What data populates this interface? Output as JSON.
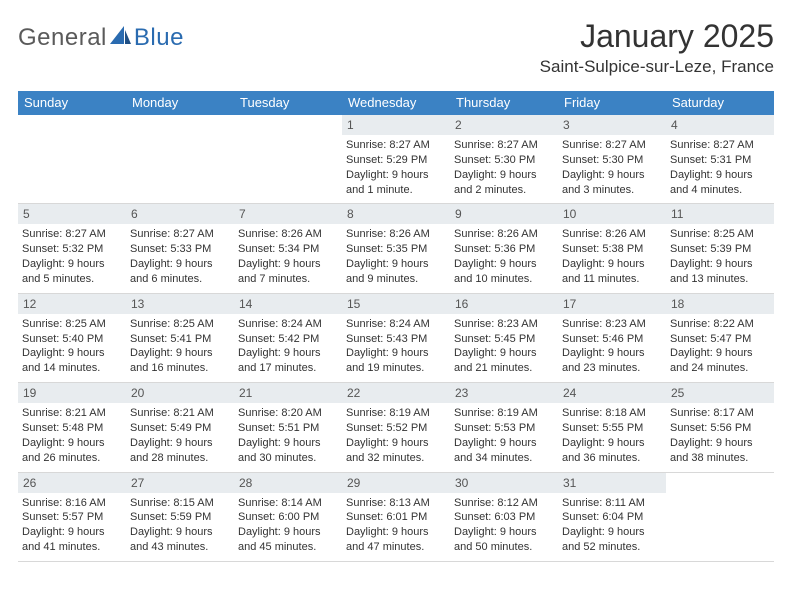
{
  "brand": {
    "part1": "General",
    "part2": "Blue"
  },
  "title": "January 2025",
  "location": "Saint-Sulpice-sur-Leze, France",
  "colors": {
    "header_bg": "#3b82c4",
    "header_text": "#ffffff",
    "daynum_bg": "#e8ecef",
    "daynum_text": "#555555",
    "body_text": "#333333",
    "logo_gray": "#5a5a5a",
    "logo_blue": "#2a6bb0",
    "divider": "#d8d8d8",
    "background": "#ffffff"
  },
  "day_names": [
    "Sunday",
    "Monday",
    "Tuesday",
    "Wednesday",
    "Thursday",
    "Friday",
    "Saturday"
  ],
  "weeks": [
    [
      {
        "day": "",
        "sunrise": "",
        "sunset": "",
        "daylight": ""
      },
      {
        "day": "",
        "sunrise": "",
        "sunset": "",
        "daylight": ""
      },
      {
        "day": "",
        "sunrise": "",
        "sunset": "",
        "daylight": ""
      },
      {
        "day": "1",
        "sunrise": "Sunrise: 8:27 AM",
        "sunset": "Sunset: 5:29 PM",
        "daylight": "Daylight: 9 hours and 1 minute."
      },
      {
        "day": "2",
        "sunrise": "Sunrise: 8:27 AM",
        "sunset": "Sunset: 5:30 PM",
        "daylight": "Daylight: 9 hours and 2 minutes."
      },
      {
        "day": "3",
        "sunrise": "Sunrise: 8:27 AM",
        "sunset": "Sunset: 5:30 PM",
        "daylight": "Daylight: 9 hours and 3 minutes."
      },
      {
        "day": "4",
        "sunrise": "Sunrise: 8:27 AM",
        "sunset": "Sunset: 5:31 PM",
        "daylight": "Daylight: 9 hours and 4 minutes."
      }
    ],
    [
      {
        "day": "5",
        "sunrise": "Sunrise: 8:27 AM",
        "sunset": "Sunset: 5:32 PM",
        "daylight": "Daylight: 9 hours and 5 minutes."
      },
      {
        "day": "6",
        "sunrise": "Sunrise: 8:27 AM",
        "sunset": "Sunset: 5:33 PM",
        "daylight": "Daylight: 9 hours and 6 minutes."
      },
      {
        "day": "7",
        "sunrise": "Sunrise: 8:26 AM",
        "sunset": "Sunset: 5:34 PM",
        "daylight": "Daylight: 9 hours and 7 minutes."
      },
      {
        "day": "8",
        "sunrise": "Sunrise: 8:26 AM",
        "sunset": "Sunset: 5:35 PM",
        "daylight": "Daylight: 9 hours and 9 minutes."
      },
      {
        "day": "9",
        "sunrise": "Sunrise: 8:26 AM",
        "sunset": "Sunset: 5:36 PM",
        "daylight": "Daylight: 9 hours and 10 minutes."
      },
      {
        "day": "10",
        "sunrise": "Sunrise: 8:26 AM",
        "sunset": "Sunset: 5:38 PM",
        "daylight": "Daylight: 9 hours and 11 minutes."
      },
      {
        "day": "11",
        "sunrise": "Sunrise: 8:25 AM",
        "sunset": "Sunset: 5:39 PM",
        "daylight": "Daylight: 9 hours and 13 minutes."
      }
    ],
    [
      {
        "day": "12",
        "sunrise": "Sunrise: 8:25 AM",
        "sunset": "Sunset: 5:40 PM",
        "daylight": "Daylight: 9 hours and 14 minutes."
      },
      {
        "day": "13",
        "sunrise": "Sunrise: 8:25 AM",
        "sunset": "Sunset: 5:41 PM",
        "daylight": "Daylight: 9 hours and 16 minutes."
      },
      {
        "day": "14",
        "sunrise": "Sunrise: 8:24 AM",
        "sunset": "Sunset: 5:42 PM",
        "daylight": "Daylight: 9 hours and 17 minutes."
      },
      {
        "day": "15",
        "sunrise": "Sunrise: 8:24 AM",
        "sunset": "Sunset: 5:43 PM",
        "daylight": "Daylight: 9 hours and 19 minutes."
      },
      {
        "day": "16",
        "sunrise": "Sunrise: 8:23 AM",
        "sunset": "Sunset: 5:45 PM",
        "daylight": "Daylight: 9 hours and 21 minutes."
      },
      {
        "day": "17",
        "sunrise": "Sunrise: 8:23 AM",
        "sunset": "Sunset: 5:46 PM",
        "daylight": "Daylight: 9 hours and 23 minutes."
      },
      {
        "day": "18",
        "sunrise": "Sunrise: 8:22 AM",
        "sunset": "Sunset: 5:47 PM",
        "daylight": "Daylight: 9 hours and 24 minutes."
      }
    ],
    [
      {
        "day": "19",
        "sunrise": "Sunrise: 8:21 AM",
        "sunset": "Sunset: 5:48 PM",
        "daylight": "Daylight: 9 hours and 26 minutes."
      },
      {
        "day": "20",
        "sunrise": "Sunrise: 8:21 AM",
        "sunset": "Sunset: 5:49 PM",
        "daylight": "Daylight: 9 hours and 28 minutes."
      },
      {
        "day": "21",
        "sunrise": "Sunrise: 8:20 AM",
        "sunset": "Sunset: 5:51 PM",
        "daylight": "Daylight: 9 hours and 30 minutes."
      },
      {
        "day": "22",
        "sunrise": "Sunrise: 8:19 AM",
        "sunset": "Sunset: 5:52 PM",
        "daylight": "Daylight: 9 hours and 32 minutes."
      },
      {
        "day": "23",
        "sunrise": "Sunrise: 8:19 AM",
        "sunset": "Sunset: 5:53 PM",
        "daylight": "Daylight: 9 hours and 34 minutes."
      },
      {
        "day": "24",
        "sunrise": "Sunrise: 8:18 AM",
        "sunset": "Sunset: 5:55 PM",
        "daylight": "Daylight: 9 hours and 36 minutes."
      },
      {
        "day": "25",
        "sunrise": "Sunrise: 8:17 AM",
        "sunset": "Sunset: 5:56 PM",
        "daylight": "Daylight: 9 hours and 38 minutes."
      }
    ],
    [
      {
        "day": "26",
        "sunrise": "Sunrise: 8:16 AM",
        "sunset": "Sunset: 5:57 PM",
        "daylight": "Daylight: 9 hours and 41 minutes."
      },
      {
        "day": "27",
        "sunrise": "Sunrise: 8:15 AM",
        "sunset": "Sunset: 5:59 PM",
        "daylight": "Daylight: 9 hours and 43 minutes."
      },
      {
        "day": "28",
        "sunrise": "Sunrise: 8:14 AM",
        "sunset": "Sunset: 6:00 PM",
        "daylight": "Daylight: 9 hours and 45 minutes."
      },
      {
        "day": "29",
        "sunrise": "Sunrise: 8:13 AM",
        "sunset": "Sunset: 6:01 PM",
        "daylight": "Daylight: 9 hours and 47 minutes."
      },
      {
        "day": "30",
        "sunrise": "Sunrise: 8:12 AM",
        "sunset": "Sunset: 6:03 PM",
        "daylight": "Daylight: 9 hours and 50 minutes."
      },
      {
        "day": "31",
        "sunrise": "Sunrise: 8:11 AM",
        "sunset": "Sunset: 6:04 PM",
        "daylight": "Daylight: 9 hours and 52 minutes."
      },
      {
        "day": "",
        "sunrise": "",
        "sunset": "",
        "daylight": ""
      }
    ]
  ]
}
